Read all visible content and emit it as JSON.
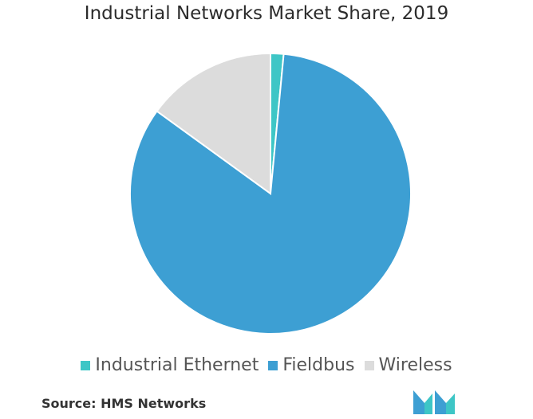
{
  "chart_data": {
    "type": "pie",
    "title": "Industrial Networks Market Share, 2019",
    "categories": [
      "Industrial Ethernet",
      "Fieldbus",
      "Wireless"
    ],
    "values": [
      1.5,
      83.5,
      15
    ],
    "colors": [
      "#3ec6c6",
      "#3d9fd3",
      "#dcdcdc"
    ],
    "legend_position": "bottom",
    "start_angle_deg": 0,
    "direction": "clockwise"
  },
  "source": "Source: HMS Networks",
  "logo": {
    "icon": "mordor-intelligence-logo",
    "colors": [
      "#3d9fd3",
      "#3ec6c6"
    ]
  }
}
